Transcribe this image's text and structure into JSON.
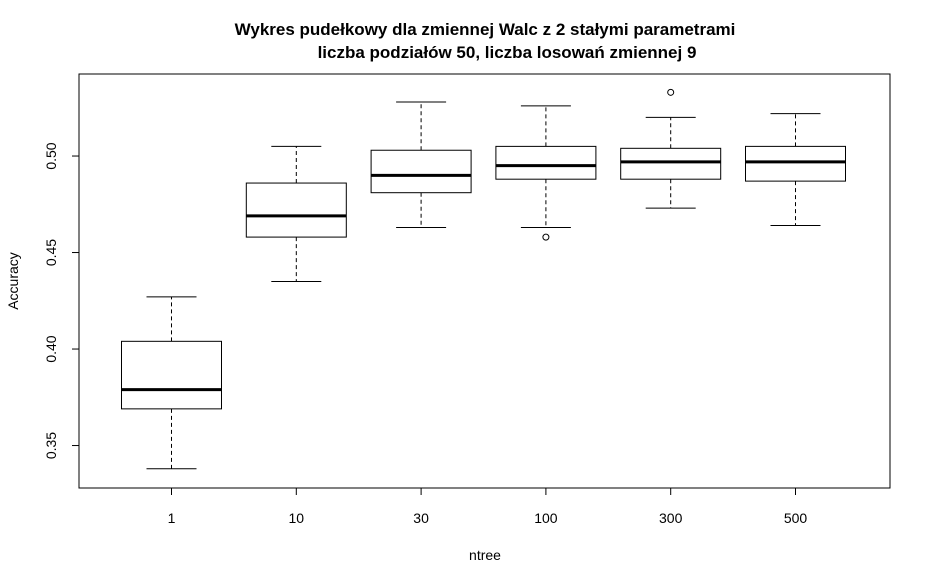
{
  "chart_data": {
    "type": "boxplot",
    "title": [
      "Wykres pudełkowy dla zmiennej Walc z 2 stałymi parametrami",
      "liczba podziałów 50, liczba losowań zmiennej 9"
    ],
    "xlabel": "ntree",
    "ylabel": "Accuracy",
    "categories": [
      "1",
      "10",
      "30",
      "100",
      "300",
      "500"
    ],
    "y_ticks": [
      0.35,
      0.4,
      0.45,
      0.5
    ],
    "y_tick_labels": [
      "0.35",
      "0.40",
      "0.45",
      "0.50"
    ],
    "ylim": [
      0.328,
      0.5425
    ],
    "grid": false,
    "boxes": [
      {
        "category": "1",
        "whisker_low": 0.338,
        "q1": 0.369,
        "median": 0.379,
        "q3": 0.404,
        "whisker_high": 0.427,
        "outliers": []
      },
      {
        "category": "10",
        "whisker_low": 0.435,
        "q1": 0.458,
        "median": 0.469,
        "q3": 0.486,
        "whisker_high": 0.505,
        "outliers": []
      },
      {
        "category": "30",
        "whisker_low": 0.463,
        "q1": 0.481,
        "median": 0.49,
        "q3": 0.503,
        "whisker_high": 0.528,
        "outliers": []
      },
      {
        "category": "100",
        "whisker_low": 0.463,
        "q1": 0.488,
        "median": 0.495,
        "q3": 0.505,
        "whisker_high": 0.526,
        "outliers": [
          0.458
        ]
      },
      {
        "category": "300",
        "whisker_low": 0.473,
        "q1": 0.488,
        "median": 0.497,
        "q3": 0.504,
        "whisker_high": 0.52,
        "outliers": [
          0.533
        ]
      },
      {
        "category": "500",
        "whisker_low": 0.464,
        "q1": 0.487,
        "median": 0.497,
        "q3": 0.505,
        "whisker_high": 0.522,
        "outliers": []
      }
    ]
  }
}
